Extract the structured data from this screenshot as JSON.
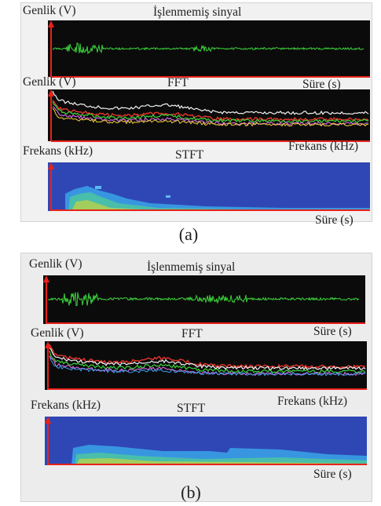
{
  "figure": {
    "a": {
      "caption": "(a)",
      "raw": {
        "y_label": "Genlik (V)",
        "title": "İşlenmemiş sinyal"
      },
      "fft": {
        "y_label": "Genlik (V)",
        "title": "FFT",
        "prev_x_label": "Süre (s)"
      },
      "stft": {
        "y_label": "Frekans (kHz)",
        "title": "STFT",
        "prev_x_label": "Frekans (kHz)",
        "x_label": "Süre (s)"
      }
    },
    "b": {
      "caption": "(b)",
      "raw": {
        "y_label": "Genlik (V)",
        "title": "İşlenmemiş sinyal",
        "x_label": "Süre (s)"
      },
      "fft": {
        "y_label": "Genlik (V)",
        "title": "FFT"
      },
      "stft": {
        "y_label": "Frekans (kHz)",
        "title": "STFT",
        "prev_x_label": "Frekans (kHz)",
        "x_label": "Süre (s)"
      }
    }
  },
  "colors": {
    "panel_background": "#f1f1f1",
    "plot_background_dark": "#0b0b0b",
    "spectrogram_background": "#2f47b5",
    "signal_green": "#3cd43c",
    "axis_red": "#e8221a",
    "fft_traces": [
      "#f2f2f2",
      "#e8342a",
      "#3bd63b",
      "#d86ae0",
      "#f0d23a",
      "#3aa0f0"
    ]
  }
}
